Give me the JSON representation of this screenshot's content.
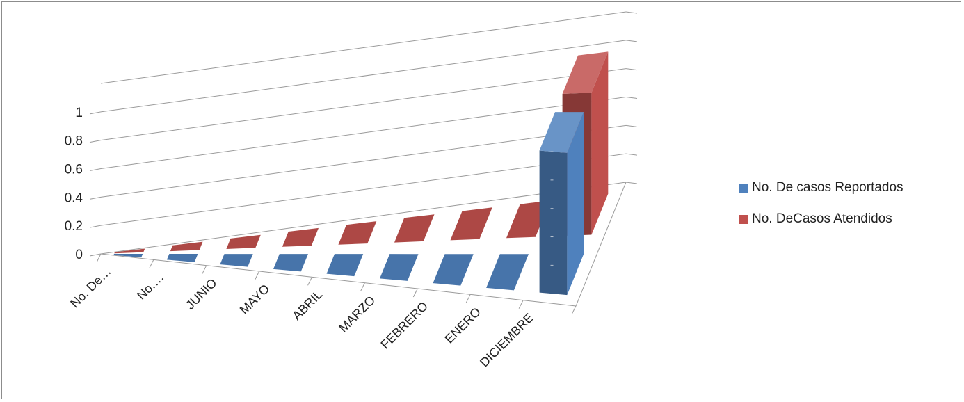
{
  "chart_data": {
    "type": "bar",
    "subtype": "3d-column",
    "title": "",
    "xlabel": "",
    "ylabel": "",
    "ylim": [
      0,
      1.2
    ],
    "yticks": [
      "0",
      "0.2",
      "0.4",
      "0.6",
      "0.8",
      "1"
    ],
    "categories": [
      "No. De…",
      "No.…",
      "JUNIO",
      "MAYO",
      "ABRIL",
      "MARZO",
      "FEBRERO",
      "ENERO",
      "DICIEMBRE"
    ],
    "grid": true,
    "legend_position": "right",
    "series": [
      {
        "name": "No. De casos Reportados",
        "color": "#4f81bd",
        "values": [
          0,
          0,
          0,
          0,
          0,
          0,
          0,
          0,
          1
        ]
      },
      {
        "name": "No. DeCasos Atendidos",
        "color": "#c0504d",
        "values": [
          0,
          0,
          0,
          0,
          0,
          0,
          0,
          0,
          1
        ]
      }
    ]
  }
}
